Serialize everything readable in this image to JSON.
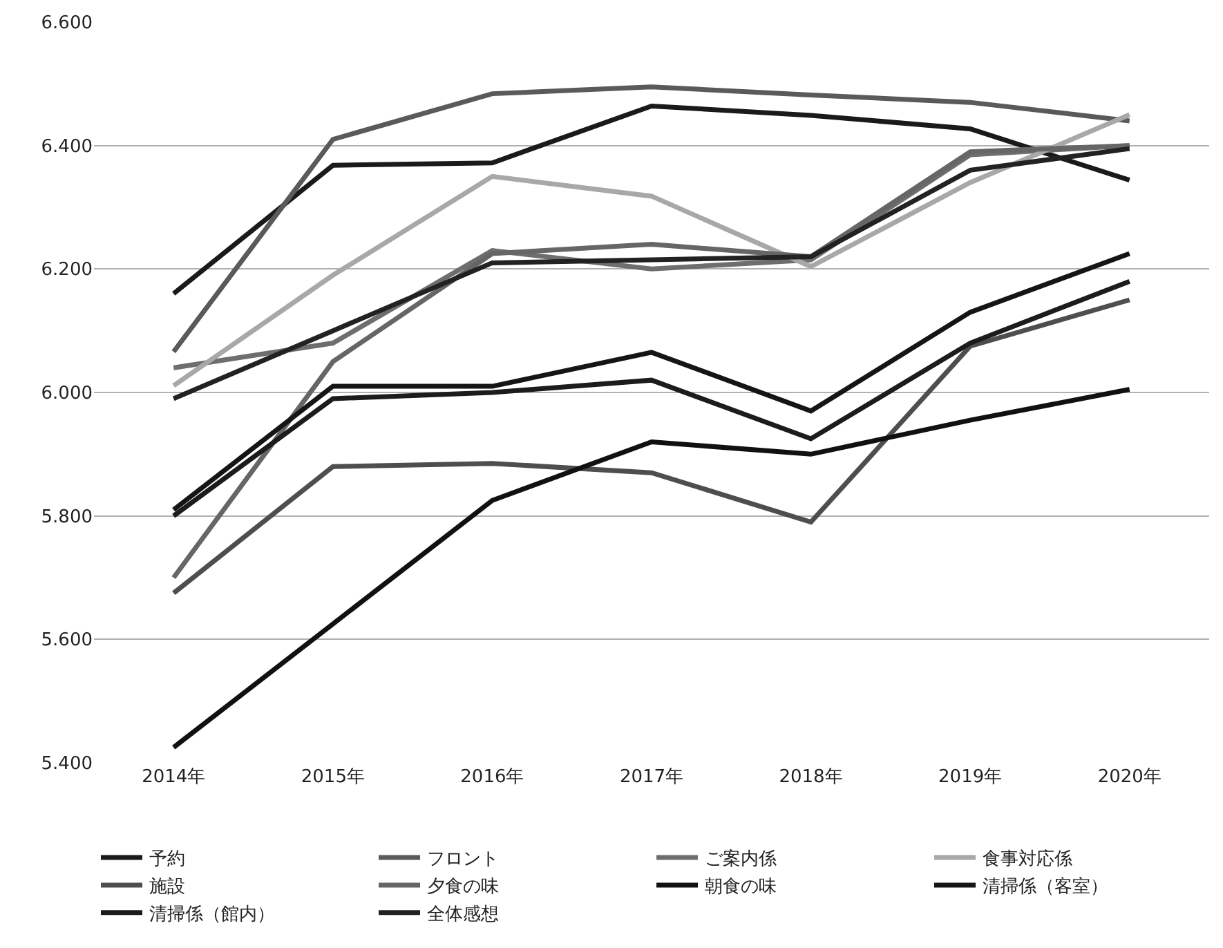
{
  "chart_data": {
    "type": "line",
    "categories": [
      "2014年",
      "2015年",
      "2016年",
      "2017年",
      "2018年",
      "2019年",
      "2020年"
    ],
    "series": [
      {
        "name": "予約",
        "color": "#1a1a1a",
        "values": [
          6.16,
          6.368,
          6.372,
          6.464,
          6.449,
          6.427,
          6.344
        ]
      },
      {
        "name": "フロント",
        "color": "#5a5a5a",
        "values": [
          6.066,
          6.41,
          6.484,
          6.495,
          6.482,
          6.47,
          6.44
        ]
      },
      {
        "name": "ご案内係",
        "color": "#6e6e6e",
        "values": [
          6.04,
          6.08,
          6.23,
          6.2,
          6.215,
          6.385,
          6.4
        ]
      },
      {
        "name": "食事対応係",
        "color": "#a8a8a8",
        "values": [
          6.011,
          6.19,
          6.35,
          6.318,
          6.204,
          6.34,
          6.45
        ]
      },
      {
        "name": "施設",
        "color": "#4e4e4e",
        "values": [
          5.675,
          5.88,
          5.885,
          5.87,
          5.79,
          6.075,
          6.15
        ]
      },
      {
        "name": "夕食の味",
        "color": "#666666",
        "values": [
          5.7,
          6.05,
          6.225,
          6.24,
          6.22,
          6.39,
          6.4
        ]
      },
      {
        "name": "朝食の味",
        "color": "#111111",
        "values": [
          5.425,
          5.625,
          5.825,
          5.92,
          5.9,
          5.955,
          6.005
        ]
      },
      {
        "name": "清掃係（客室）",
        "color": "#151515",
        "values": [
          5.81,
          6.01,
          6.01,
          6.065,
          5.97,
          6.13,
          6.225
        ]
      },
      {
        "name": "清掃係（館内）",
        "color": "#1c1c1c",
        "values": [
          5.8,
          5.99,
          6.0,
          6.02,
          5.925,
          6.08,
          6.18
        ]
      },
      {
        "name": "全体感想",
        "color": "#222222",
        "values": [
          5.99,
          6.1,
          6.21,
          6.215,
          6.22,
          6.36,
          6.395
        ]
      }
    ],
    "ylim": [
      5.4,
      6.6
    ],
    "yticks": [
      {
        "value": 5.4,
        "label": "5.400"
      },
      {
        "value": 5.6,
        "label": "5.600"
      },
      {
        "value": 5.8,
        "label": "5.800"
      },
      {
        "value": 6.0,
        "label": "6.000"
      },
      {
        "value": 6.2,
        "label": "6.200"
      },
      {
        "value": 6.4,
        "label": "6.400"
      },
      {
        "value": 6.6,
        "label": "6.600"
      }
    ],
    "grid": "y",
    "legend": "bottom",
    "marker": "none",
    "line_style": "solid"
  }
}
